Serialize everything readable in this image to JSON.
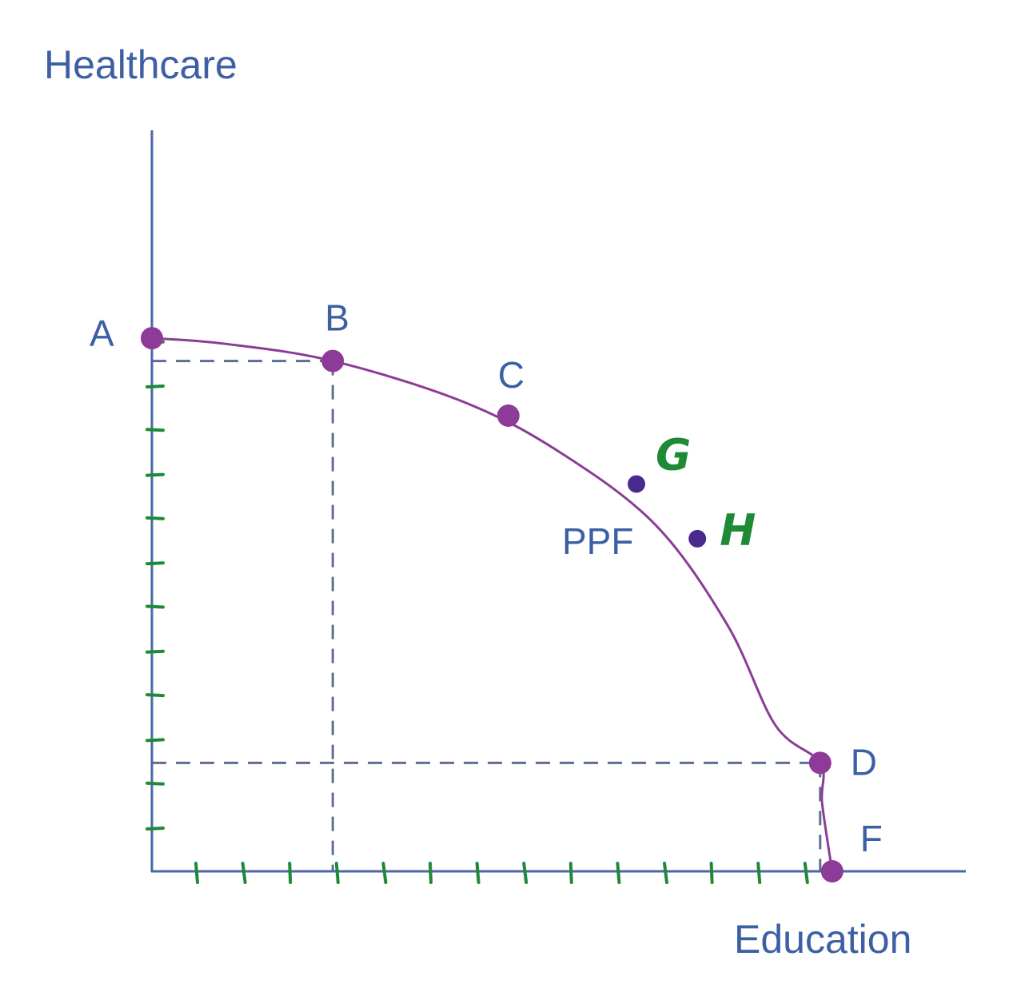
{
  "chart_data": {
    "type": "line",
    "title": "",
    "xlabel": "Education",
    "ylabel": "Healthcare",
    "curve_label": "PPF",
    "xlim": [
      0,
      14
    ],
    "ylim": [
      0,
      12
    ],
    "grid": false,
    "x_tick_count": 14,
    "y_tick_count": 12,
    "series": [
      {
        "name": "PPF",
        "points": [
          {
            "x": 0,
            "y": 11.7
          },
          {
            "x": 1.5,
            "y": 11.58
          },
          {
            "x": 3.77,
            "y": 11.2
          },
          {
            "x": 6.5,
            "y": 10.3
          },
          {
            "x": 8.5,
            "y": 9.2
          },
          {
            "x": 10.5,
            "y": 7.6
          },
          {
            "x": 12.0,
            "y": 5.4
          },
          {
            "x": 13.0,
            "y": 3.2
          },
          {
            "x": 13.93,
            "y": 2.38
          },
          {
            "x": 13.97,
            "y": 1.5
          },
          {
            "x": 14.18,
            "y": 0
          }
        ]
      }
    ],
    "points": [
      {
        "label": "A",
        "x": 0,
        "y": 11.7,
        "style": "printed"
      },
      {
        "label": "B",
        "x": 3.77,
        "y": 11.2,
        "style": "printed"
      },
      {
        "label": "C",
        "x": 7.43,
        "y": 10.0,
        "style": "printed"
      },
      {
        "label": "G",
        "x": 10.1,
        "y": 8.5,
        "style": "handwritten"
      },
      {
        "label": "H",
        "x": 11.37,
        "y": 7.3,
        "style": "handwritten"
      },
      {
        "label": "D",
        "x": 13.93,
        "y": 2.38,
        "style": "printed"
      },
      {
        "label": "F",
        "x": 14.18,
        "y": 0,
        "style": "printed"
      }
    ],
    "reference_lines": [
      {
        "from_point": "B",
        "type": "vertical"
      },
      {
        "from_point": "B",
        "type": "horizontal"
      },
      {
        "from_point": "D",
        "type": "vertical"
      },
      {
        "from_point": "D",
        "type": "horizontal"
      }
    ]
  },
  "colors": {
    "axis": "#4a67a8",
    "curve": "#8b3d96",
    "point_printed": "#8e3a98",
    "point_handwritten": "#4b2a8f",
    "label_printed": "#3d5fa3",
    "label_handwritten": "#1e8a35",
    "tick_handwritten": "#1e8a35",
    "dashed": "#5b6f91"
  }
}
